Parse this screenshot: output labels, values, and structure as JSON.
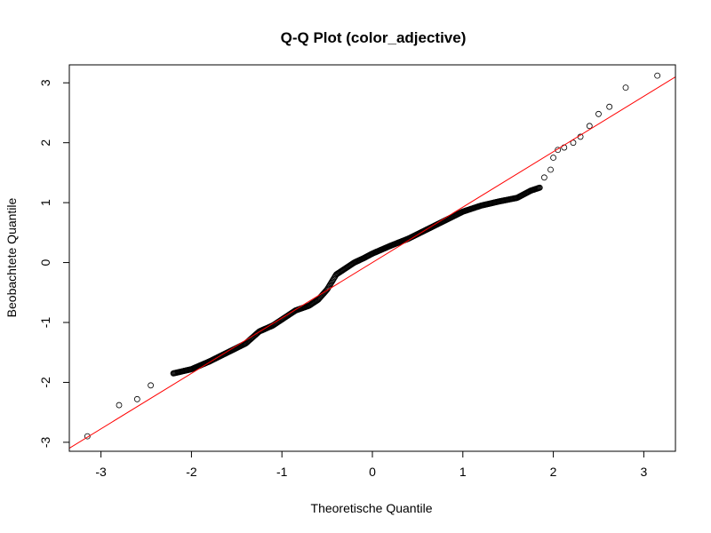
{
  "chart_data": {
    "type": "scatter",
    "title": "Q-Q Plot (color_adjective)",
    "xlabel": "Theoretische Quantile",
    "ylabel": "Beobachtete Quantile",
    "xlim": [
      -3.35,
      3.35
    ],
    "ylim": [
      -3.15,
      3.3
    ],
    "xticks": [
      -3,
      -2,
      -1,
      0,
      1,
      2,
      3
    ],
    "yticks": [
      -3,
      -2,
      -1,
      0,
      1,
      2,
      3
    ],
    "grid": false,
    "legend": "none",
    "point_color": "#000000",
    "line_color": "#ff0000",
    "reference_line": {
      "intercept": 0.0,
      "slope": 0.925
    },
    "anchor_points": [
      [
        -3.15,
        -2.9
      ],
      [
        -2.8,
        -2.38
      ],
      [
        -2.6,
        -2.28
      ],
      [
        -2.45,
        -2.05
      ],
      [
        -2.2,
        -1.85
      ],
      [
        -2.0,
        -1.78
      ],
      [
        -1.8,
        -1.65
      ],
      [
        -1.6,
        -1.5
      ],
      [
        -1.4,
        -1.35
      ],
      [
        -1.25,
        -1.15
      ],
      [
        -1.1,
        -1.05
      ],
      [
        -1.0,
        -0.95
      ],
      [
        -0.85,
        -0.8
      ],
      [
        -0.7,
        -0.72
      ],
      [
        -0.6,
        -0.62
      ],
      [
        -0.5,
        -0.45
      ],
      [
        -0.4,
        -0.2
      ],
      [
        -0.3,
        -0.1
      ],
      [
        -0.2,
        0.0
      ],
      [
        -0.1,
        0.07
      ],
      [
        0.0,
        0.15
      ],
      [
        0.2,
        0.28
      ],
      [
        0.4,
        0.4
      ],
      [
        0.6,
        0.55
      ],
      [
        0.8,
        0.7
      ],
      [
        1.0,
        0.85
      ],
      [
        1.2,
        0.95
      ],
      [
        1.4,
        1.02
      ],
      [
        1.6,
        1.08
      ],
      [
        1.75,
        1.2
      ],
      [
        1.85,
        1.25
      ],
      [
        1.9,
        1.42
      ],
      [
        1.97,
        1.55
      ],
      [
        2.0,
        1.75
      ],
      [
        2.05,
        1.88
      ],
      [
        2.12,
        1.92
      ],
      [
        2.22,
        2.0
      ],
      [
        2.3,
        2.1
      ],
      [
        2.4,
        2.28
      ],
      [
        2.5,
        2.48
      ],
      [
        2.62,
        2.6
      ],
      [
        2.8,
        2.92
      ],
      [
        3.15,
        3.12
      ]
    ],
    "n_points": 500
  }
}
